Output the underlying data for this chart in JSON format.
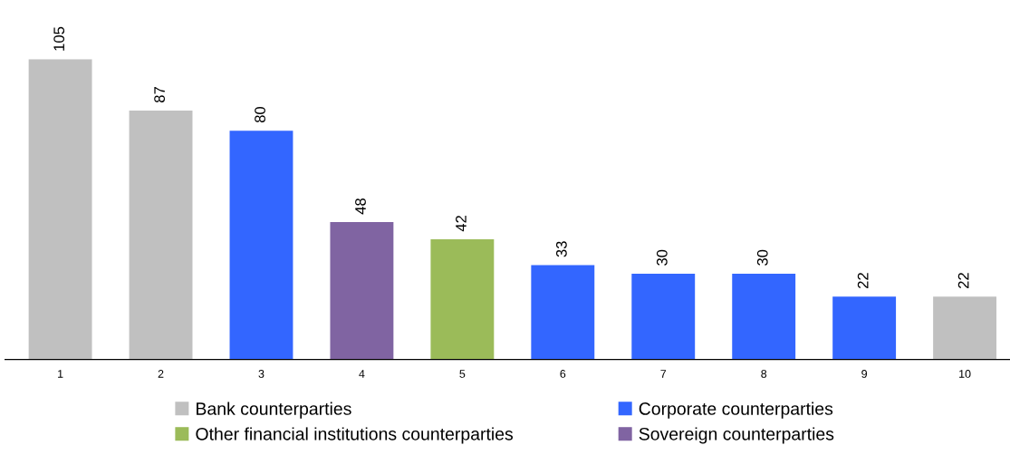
{
  "chart_data": {
    "type": "bar",
    "stacked": true,
    "data_labels": true,
    "legend": "bottom",
    "grid": false,
    "categories": [
      "1",
      "2",
      "3",
      "4",
      "5",
      "6",
      "7",
      "8",
      "9",
      "10"
    ],
    "series": [
      {
        "name": "Bank counterparties",
        "color": "#c0c0c0",
        "values": [
          105,
          87,
          null,
          null,
          null,
          null,
          null,
          null,
          null,
          22
        ]
      },
      {
        "name": "Corporate counterparties",
        "color": "#3366ff",
        "values": [
          null,
          null,
          80,
          null,
          null,
          33,
          30,
          30,
          22,
          null
        ]
      },
      {
        "name": "Other financial institutions counterparties",
        "color": "#9bbb59",
        "values": [
          null,
          null,
          null,
          null,
          42,
          null,
          null,
          null,
          null,
          null
        ]
      },
      {
        "name": "Sovereign counterparties",
        "color": "#8064a2",
        "values": [
          null,
          null,
          null,
          48,
          null,
          null,
          null,
          null,
          null,
          null
        ]
      }
    ]
  }
}
